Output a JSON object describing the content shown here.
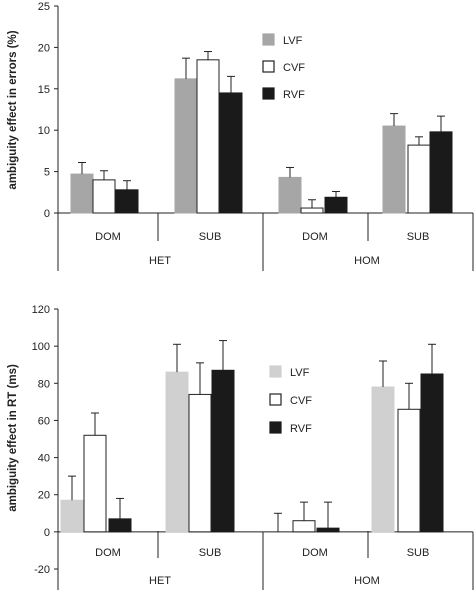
{
  "chart_data": [
    {
      "type": "bar",
      "ylabel": "ambiguity effect in errors (%)",
      "ylim": [
        0,
        25
      ],
      "yticks": [
        0,
        5,
        10,
        15,
        20,
        25
      ],
      "groups": [
        "HET",
        "HOM"
      ],
      "categories": [
        "DOM",
        "SUB",
        "DOM",
        "SUB"
      ],
      "series": [
        {
          "name": "LVF",
          "color": "#a6a6a6",
          "values": [
            4.7,
            16.2,
            4.3,
            10.5
          ],
          "errors": [
            1.4,
            2.5,
            1.2,
            1.5
          ]
        },
        {
          "name": "CVF",
          "color": "#ffffff",
          "values": [
            4.0,
            18.5,
            0.6,
            8.2
          ],
          "errors": [
            1.1,
            1.0,
            1.0,
            1.0
          ]
        },
        {
          "name": "RVF",
          "color": "#1a1a1a",
          "values": [
            2.8,
            14.5,
            1.9,
            9.8
          ],
          "errors": [
            1.1,
            2.0,
            0.7,
            1.9
          ]
        }
      ],
      "legend": "top-center",
      "grid": false
    },
    {
      "type": "bar",
      "ylabel": "ambiguity effect in RT (ms)",
      "ylim": [
        -20,
        120
      ],
      "yticks": [
        -20,
        0,
        20,
        40,
        60,
        80,
        100,
        120
      ],
      "groups": [
        "HET",
        "HOM"
      ],
      "categories": [
        "DOM",
        "SUB",
        "DOM",
        "SUB"
      ],
      "series": [
        {
          "name": "LVF",
          "color": "#d0d0d0",
          "values": [
            17,
            86,
            0,
            78
          ],
          "errors": [
            13,
            15,
            10,
            14
          ]
        },
        {
          "name": "CVF",
          "color": "#ffffff",
          "values": [
            52,
            74,
            6,
            66
          ],
          "errors": [
            12,
            17,
            10,
            14
          ]
        },
        {
          "name": "RVF",
          "color": "#1a1a1a",
          "values": [
            7,
            87,
            2,
            85
          ],
          "errors": [
            11,
            16,
            14,
            16
          ]
        }
      ],
      "legend": "right",
      "grid": false
    }
  ]
}
